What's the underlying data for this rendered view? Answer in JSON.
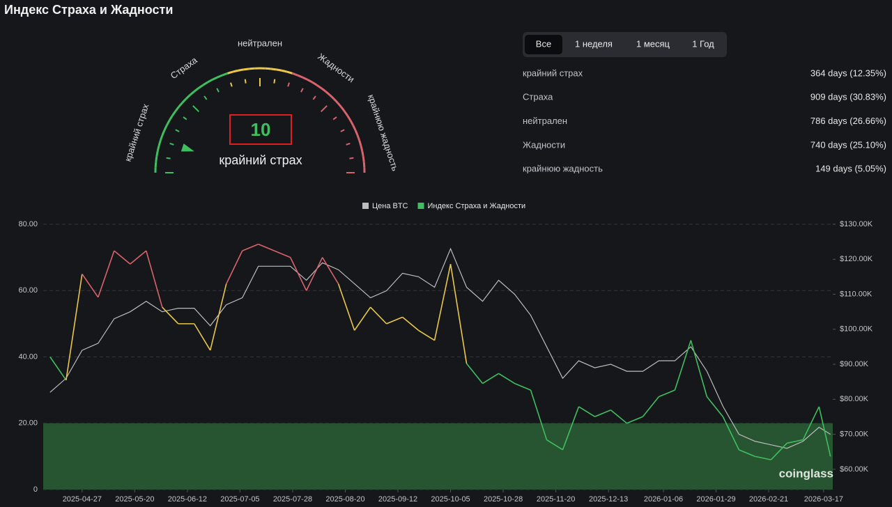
{
  "header": {
    "title": "Индекс Страха и Жадности"
  },
  "gauge": {
    "value": 10,
    "label": "крайний страх",
    "lim": [
      0,
      100
    ],
    "scale_labels": [
      "крайний страх",
      "Страха",
      "нейтрален",
      "Жадности",
      "крайнюю жадность"
    ]
  },
  "tabs": [
    "Все",
    "1 неделя",
    "1 месяц",
    "1 Год"
  ],
  "active_tab": 0,
  "stats": [
    {
      "label": "крайний страх",
      "value": "364 days (12.35%)"
    },
    {
      "label": "Страха",
      "value": "909 days (30.83%)"
    },
    {
      "label": "нейтрален",
      "value": "786 days (26.66%)"
    },
    {
      "label": "Жадности",
      "value": "740 days (25.10%)"
    },
    {
      "label": "крайнюю жадность",
      "value": "149 days (5.05%)"
    }
  ],
  "chart_data": {
    "type": "line",
    "x": [
      "2025-04-13",
      "2025-04-20",
      "2025-04-27",
      "2025-05-04",
      "2025-05-11",
      "2025-05-18",
      "2025-05-25",
      "2025-06-01",
      "2025-06-08",
      "2025-06-15",
      "2025-06-22",
      "2025-06-29",
      "2025-07-06",
      "2025-07-13",
      "2025-07-20",
      "2025-07-27",
      "2025-08-03",
      "2025-08-10",
      "2025-08-17",
      "2025-08-24",
      "2025-08-31",
      "2025-09-07",
      "2025-09-14",
      "2025-09-21",
      "2025-09-28",
      "2025-10-05",
      "2025-10-12",
      "2025-10-19",
      "2025-10-26",
      "2025-11-02",
      "2025-11-09",
      "2025-11-16",
      "2025-11-23",
      "2025-11-30",
      "2025-12-07",
      "2025-12-14",
      "2025-12-21",
      "2025-12-28",
      "2026-01-04",
      "2026-01-11",
      "2026-01-18",
      "2026-01-25",
      "2026-02-01",
      "2026-02-08",
      "2026-02-15",
      "2026-02-22",
      "2026-03-01",
      "2026-03-08",
      "2026-03-15",
      "2026-03-20"
    ],
    "series": [
      {
        "name": "Цена BTC",
        "color": "#bdbdbd",
        "axis": "y2",
        "values": [
          82000,
          86000,
          94000,
          96000,
          103000,
          105000,
          108000,
          105000,
          106000,
          106000,
          101000,
          107000,
          109000,
          118000,
          118000,
          118000,
          114000,
          119000,
          117000,
          113000,
          109000,
          111000,
          116000,
          115000,
          112000,
          123000,
          112000,
          108000,
          114000,
          110000,
          104000,
          95000,
          86000,
          91000,
          89000,
          90000,
          88000,
          88000,
          91000,
          91000,
          95000,
          88000,
          78000,
          70000,
          68000,
          67000,
          66000,
          68000,
          72000,
          70000
        ]
      },
      {
        "name": "Индекс Страха и Жадности",
        "color": "#3fbf5f",
        "values": [
          40,
          33,
          65,
          58,
          72,
          68,
          72,
          55,
          50,
          50,
          42,
          62,
          72,
          74,
          72,
          70,
          60,
          70,
          62,
          48,
          55,
          50,
          52,
          48,
          45,
          68,
          38,
          32,
          35,
          32,
          30,
          15,
          12,
          25,
          22,
          24,
          20,
          22,
          28,
          30,
          45,
          28,
          22,
          12,
          10,
          9,
          14,
          15,
          25,
          10
        ],
        "color_zones": [
          {
            "max": 40,
            "color": "#3fbf5f"
          },
          {
            "max": 60,
            "color": "#e9c84b"
          },
          {
            "color": "#d9636b"
          }
        ]
      }
    ],
    "xlim": [
      "2025-04-10",
      "2026-03-21"
    ],
    "xticks": [
      "2025-04-27",
      "2025-05-20",
      "2025-06-12",
      "2025-07-05",
      "2025-07-28",
      "2025-08-20",
      "2025-09-12",
      "2025-10-05",
      "2025-10-28",
      "2025-11-20",
      "2025-12-13",
      "2026-01-06",
      "2026-01-29",
      "2026-02-21",
      "2026-03-17"
    ],
    "ylim": [
      0,
      80
    ],
    "yticks": [
      0,
      {
        "value": 20,
        "label": "20.00"
      },
      {
        "value": 40,
        "label": "40.00"
      },
      {
        "value": 60,
        "label": "60.00"
      },
      {
        "value": 80,
        "label": "80.00"
      }
    ],
    "y2lim": [
      54200,
      130000
    ],
    "y2ticks": [
      {
        "value": 60000,
        "label": "$60.00K"
      },
      {
        "value": 70000,
        "label": "$70.00K"
      },
      {
        "value": 80000,
        "label": "$80.00K"
      },
      {
        "value": 90000,
        "label": "$90.00K"
      },
      {
        "value": 100000,
        "label": "$100.00K"
      },
      {
        "value": 110000,
        "label": "$110.00K"
      },
      {
        "value": 120000,
        "label": "$120.00K"
      },
      {
        "value": 130000,
        "label": "$130.00K"
      }
    ],
    "grid": true,
    "band": {
      "from": 0,
      "to": 20,
      "color": "#2f6b3a"
    }
  },
  "watermark": "coinglass"
}
